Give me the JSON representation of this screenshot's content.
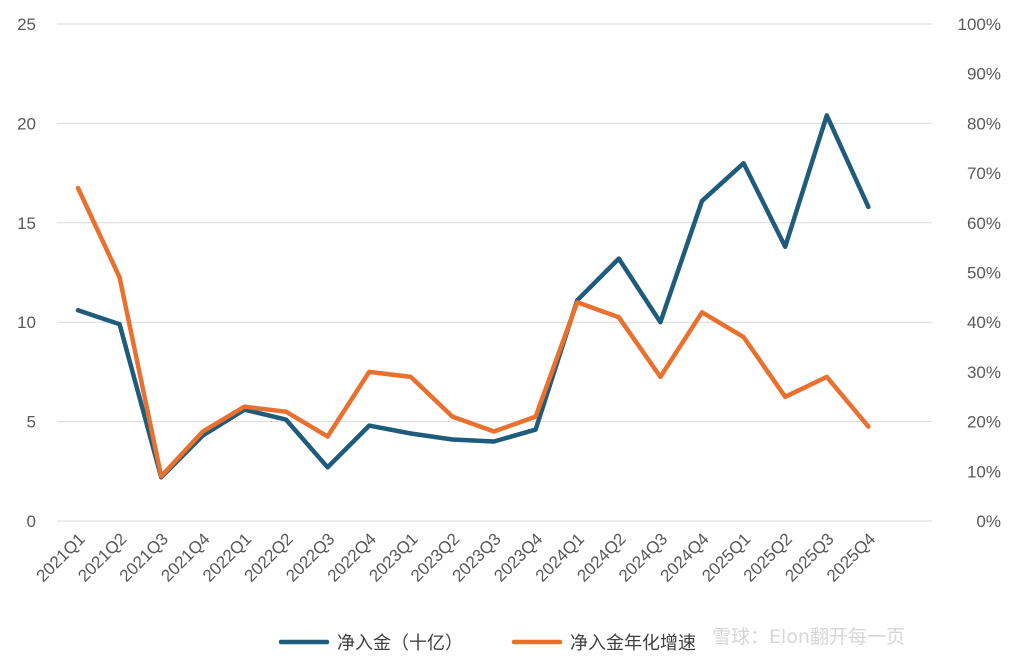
{
  "chart_data": {
    "type": "line",
    "categories": [
      "2021Q1",
      "2021Q2",
      "2021Q3",
      "2021Q4",
      "2022Q1",
      "2022Q2",
      "2022Q3",
      "2022Q4",
      "2023Q1",
      "2023Q2",
      "2023Q3",
      "2023Q4",
      "2024Q1",
      "2024Q2",
      "2024Q3",
      "2024Q4",
      "2025Q1",
      "2025Q2",
      "2025Q3",
      "2025Q4"
    ],
    "series": [
      {
        "name": "净入金（十亿）",
        "axis": "left",
        "color": "#1f5b7a",
        "values": [
          10.6,
          9.9,
          2.2,
          4.3,
          5.6,
          5.1,
          2.7,
          4.8,
          4.4,
          4.1,
          4.0,
          4.6,
          11.1,
          13.2,
          10.0,
          16.1,
          18.0,
          13.8,
          20.4,
          15.8
        ]
      },
      {
        "name": "净入金年化增速",
        "axis": "right",
        "color": "#e9702f",
        "values": [
          0.67,
          0.49,
          0.09,
          0.18,
          0.23,
          0.22,
          0.17,
          0.3,
          0.29,
          0.21,
          0.18,
          0.21,
          0.44,
          0.41,
          0.29,
          0.42,
          0.37,
          0.25,
          0.29,
          0.19
        ]
      }
    ],
    "y_left": {
      "ylim": [
        0,
        25
      ],
      "ticks": [
        "0",
        "5",
        "10",
        "15",
        "20",
        "25"
      ]
    },
    "y_right": {
      "ylim": [
        0,
        1
      ],
      "ticks": [
        "0%",
        "10%",
        "20%",
        "30%",
        "40%",
        "50%",
        "60%",
        "70%",
        "80%",
        "90%",
        "100%"
      ]
    },
    "grid": true,
    "legend_position": "bottom"
  },
  "watermark": "雪球：Elon翻开每一页"
}
